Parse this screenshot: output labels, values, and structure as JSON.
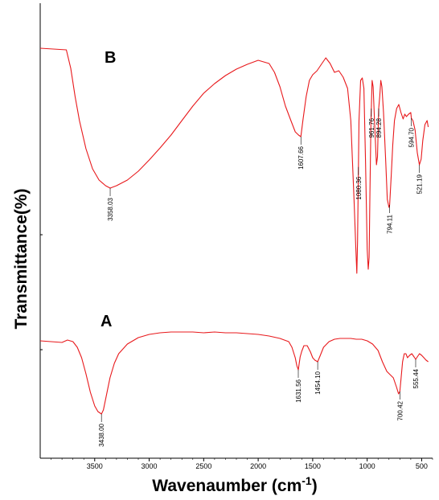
{
  "chart_data": {
    "type": "line",
    "xlabel_main": "Wavenaumber (cm",
    "xlabel_sup": "-1",
    "xlabel_end": ")",
    "ylabel": "Transmittance(%)",
    "xlim": [
      4000,
      400
    ],
    "xticks": [
      3500,
      3000,
      2500,
      2000,
      1500,
      1000,
      500
    ],
    "line_color": "#e8191c",
    "series": [
      {
        "name": "B",
        "points": [
          [
            4000,
            60
          ],
          [
            3760,
            62
          ],
          [
            3720,
            85
          ],
          [
            3680,
            120
          ],
          [
            3640,
            150
          ],
          [
            3580,
            185
          ],
          [
            3520,
            210
          ],
          [
            3460,
            224
          ],
          [
            3400,
            231
          ],
          [
            3358,
            234
          ],
          [
            3300,
            231
          ],
          [
            3200,
            224
          ],
          [
            3100,
            213
          ],
          [
            3000,
            199
          ],
          [
            2900,
            184
          ],
          [
            2800,
            168
          ],
          [
            2700,
            150
          ],
          [
            2600,
            132
          ],
          [
            2500,
            116
          ],
          [
            2400,
            104
          ],
          [
            2300,
            94
          ],
          [
            2200,
            86
          ],
          [
            2100,
            80
          ],
          [
            2000,
            75
          ],
          [
            1900,
            79
          ],
          [
            1850,
            90
          ],
          [
            1800,
            108
          ],
          [
            1750,
            132
          ],
          [
            1700,
            150
          ],
          [
            1660,
            164
          ],
          [
            1630,
            168
          ],
          [
            1608,
            170
          ],
          [
            1590,
            150
          ],
          [
            1560,
            120
          ],
          [
            1530,
            100
          ],
          [
            1500,
            93
          ],
          [
            1460,
            88
          ],
          [
            1420,
            80
          ],
          [
            1380,
            72
          ],
          [
            1340,
            79
          ],
          [
            1300,
            90
          ],
          [
            1260,
            88
          ],
          [
            1220,
            96
          ],
          [
            1180,
            110
          ],
          [
            1150,
            150
          ],
          [
            1120,
            250
          ],
          [
            1105,
            305
          ],
          [
            1095,
            340
          ],
          [
            1088,
            300
          ],
          [
            1075,
            150
          ],
          [
            1060,
            100
          ],
          [
            1045,
            97
          ],
          [
            1030,
            110
          ],
          [
            1015,
            200
          ],
          [
            1000,
            310
          ],
          [
            990,
            335
          ],
          [
            982,
            320
          ],
          [
            975,
            240
          ],
          [
            965,
            150
          ],
          [
            955,
            100
          ],
          [
            945,
            108
          ],
          [
            930,
            160
          ],
          [
            915,
            205
          ],
          [
            905,
            195
          ],
          [
            894,
            135
          ],
          [
            885,
            120
          ],
          [
            875,
            100
          ],
          [
            865,
            108
          ],
          [
            850,
            140
          ],
          [
            830,
            200
          ],
          [
            815,
            248
          ],
          [
            800,
            258
          ],
          [
            794,
            255
          ],
          [
            780,
            220
          ],
          [
            765,
            180
          ],
          [
            750,
            150
          ],
          [
            730,
            135
          ],
          [
            710,
            130
          ],
          [
            690,
            140
          ],
          [
            670,
            148
          ],
          [
            655,
            142
          ],
          [
            640,
            145
          ],
          [
            620,
            142
          ],
          [
            600,
            140
          ],
          [
            595,
            147
          ],
          [
            580,
            150
          ],
          [
            560,
            162
          ],
          [
            540,
            190
          ],
          [
            521,
            205
          ],
          [
            505,
            198
          ],
          [
            490,
            175
          ],
          [
            470,
            155
          ],
          [
            450,
            150
          ],
          [
            440,
            158
          ]
        ],
        "peaks": [
          {
            "x": 3358,
            "label": "3358.03"
          },
          {
            "x": 1608,
            "label": "1607.66"
          },
          {
            "x": 1080,
            "label": "1080.36"
          },
          {
            "x": 962,
            "label": "961.76"
          },
          {
            "x": 894,
            "label": "894.28"
          },
          {
            "x": 794,
            "label": "794.11"
          },
          {
            "x": 595,
            "label": "594.70"
          },
          {
            "x": 521,
            "label": "521.19"
          }
        ]
      },
      {
        "name": "A",
        "points": [
          [
            4000,
            424
          ],
          [
            3800,
            426
          ],
          [
            3750,
            423
          ],
          [
            3700,
            425
          ],
          [
            3660,
            432
          ],
          [
            3620,
            445
          ],
          [
            3580,
            465
          ],
          [
            3540,
            488
          ],
          [
            3500,
            505
          ],
          [
            3470,
            512
          ],
          [
            3438,
            515
          ],
          [
            3420,
            510
          ],
          [
            3390,
            490
          ],
          [
            3360,
            470
          ],
          [
            3320,
            452
          ],
          [
            3280,
            440
          ],
          [
            3200,
            428
          ],
          [
            3100,
            420
          ],
          [
            3000,
            416
          ],
          [
            2900,
            414
          ],
          [
            2800,
            413
          ],
          [
            2700,
            413
          ],
          [
            2600,
            413
          ],
          [
            2500,
            414
          ],
          [
            2400,
            413
          ],
          [
            2300,
            414
          ],
          [
            2200,
            414
          ],
          [
            2100,
            415
          ],
          [
            2000,
            416
          ],
          [
            1900,
            418
          ],
          [
            1800,
            421
          ],
          [
            1760,
            423
          ],
          [
            1720,
            425
          ],
          [
            1690,
            432
          ],
          [
            1660,
            445
          ],
          [
            1645,
            455
          ],
          [
            1632,
            460
          ],
          [
            1615,
            444
          ],
          [
            1600,
            437
          ],
          [
            1580,
            430
          ],
          [
            1550,
            430
          ],
          [
            1520,
            438
          ],
          [
            1500,
            445
          ],
          [
            1480,
            448
          ],
          [
            1454,
            450
          ],
          [
            1430,
            442
          ],
          [
            1400,
            432
          ],
          [
            1350,
            425
          ],
          [
            1300,
            422
          ],
          [
            1250,
            421
          ],
          [
            1200,
            421
          ],
          [
            1150,
            421
          ],
          [
            1100,
            422
          ],
          [
            1050,
            422
          ],
          [
            1000,
            424
          ],
          [
            950,
            428
          ],
          [
            900,
            436
          ],
          [
            860,
            450
          ],
          [
            820,
            462
          ],
          [
            790,
            466
          ],
          [
            760,
            470
          ],
          [
            730,
            482
          ],
          [
            712,
            490
          ],
          [
            700,
            487
          ],
          [
            690,
            472
          ],
          [
            675,
            450
          ],
          [
            660,
            440
          ],
          [
            645,
            440
          ],
          [
            630,
            445
          ],
          [
            610,
            442
          ],
          [
            590,
            440
          ],
          [
            570,
            444
          ],
          [
            555,
            447
          ],
          [
            540,
            444
          ],
          [
            520,
            440
          ],
          [
            500,
            442
          ],
          [
            480,
            445
          ],
          [
            460,
            448
          ],
          [
            440,
            450
          ]
        ],
        "peaks": [
          {
            "x": 3438,
            "label": "3438.00"
          },
          {
            "x": 1632,
            "label": "1631.56"
          },
          {
            "x": 1454,
            "label": "1454.10"
          },
          {
            "x": 700,
            "label": "700.42"
          },
          {
            "x": 555,
            "label": "555.44"
          }
        ]
      }
    ]
  }
}
